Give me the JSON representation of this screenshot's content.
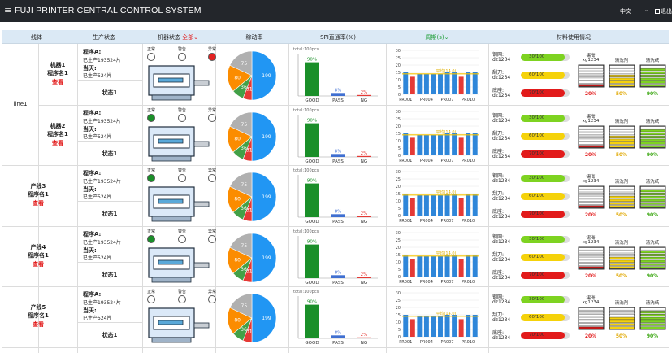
{
  "header": {
    "menu_glyph": "≡",
    "title": "FUJI PRINTER CENTRAL CONTROL SYSTEM",
    "language": "中文",
    "logout": "退出"
  },
  "columns": {
    "c0": "线体",
    "c1": "生产状态",
    "c2": "机器状态",
    "c2_filter": "全部",
    "c3": "稼动率",
    "c4": "SPI直通率(%)",
    "c5": "周期(s)",
    "c6": "材料使用情况"
  },
  "status_labels": {
    "normal": "正常",
    "warning": "警告",
    "error": "异常"
  },
  "lines": [
    {
      "name": "line1",
      "machines": [
        {
          "name1": "机器1",
          "name2": "程序名1",
          "view": "查看",
          "status": "error"
        },
        {
          "name1": "机器2",
          "name2": "程序名1",
          "view": "查看",
          "status": "normal"
        }
      ]
    },
    {
      "name": "",
      "machines": [
        {
          "name1": "产线3",
          "name2": "程序名1",
          "view": "查看",
          "status": "normal"
        }
      ]
    },
    {
      "name": "",
      "machines": [
        {
          "name1": "产线4",
          "name2": "程序名1",
          "view": "查看",
          "status": "normal"
        }
      ]
    },
    {
      "name": "",
      "machines": [
        {
          "name1": "产线5",
          "name2": "程序名1",
          "view": "查看",
          "status": "none"
        }
      ]
    }
  ],
  "production": {
    "program": "程序A:",
    "total": "已生产193524片",
    "today_label": "当天:",
    "today": "已生产524片",
    "state": "状态1"
  },
  "utilization": {
    "slices": [
      {
        "label": "199",
        "value": 50,
        "color": "#2196f3"
      },
      {
        "label": "31",
        "value": 6,
        "color": "#e53935"
      },
      {
        "label": "36",
        "value": 8,
        "color": "#43a047"
      },
      {
        "label": "80",
        "value": 18,
        "color": "#fb8c00"
      },
      {
        "label": "75",
        "value": 18,
        "color": "#b0b0b0"
      }
    ]
  },
  "spi": {
    "total_label": "total:100pcs",
    "ymax": 100,
    "bars": [
      {
        "label": "GOOD",
        "value": 90,
        "pct": "90%",
        "color": "#1a8f29"
      },
      {
        "label": "PASS",
        "value": 8,
        "pct": "8%",
        "color": "#3f6fd1"
      },
      {
        "label": "NG",
        "value": 2,
        "pct": "2%",
        "color": "#e53935"
      }
    ]
  },
  "cycle": {
    "ymax": 30,
    "yticks": [
      "30",
      "25",
      "20",
      "15",
      "10",
      "5",
      "0"
    ],
    "xlabels": [
      "PR001",
      "PR004",
      "PR007",
      "PR010"
    ],
    "avg_label": "平均(14.0)",
    "avg": 14,
    "values": [
      15,
      12,
      14,
      14,
      14,
      14,
      15,
      15,
      12,
      15,
      15
    ],
    "colors": [
      "#2e86d9",
      "#e53935",
      "#2e86d9",
      "#2e86d9",
      "#2e86d9",
      "#2e86d9",
      "#2e86d9",
      "#2e86d9",
      "#e53935",
      "#2e86d9",
      "#2e86d9"
    ]
  },
  "materials": {
    "rows": [
      {
        "name": "钢网:",
        "id": "dz1234",
        "label": "30/100",
        "fill": 0.9,
        "color": "#7ed321"
      },
      {
        "name": "刮刀:",
        "id": "dz1234",
        "label": "60/100",
        "fill": 0.9,
        "color": "#f5d20a"
      },
      {
        "name": "底座:",
        "id": "dz1234",
        "label": "70/100",
        "fill": 0.9,
        "color": "#e21b1b"
      }
    ],
    "containers": [
      {
        "name": "锡膏",
        "sub": "xg1234",
        "pct": "20%",
        "level": 0.2,
        "color": "#c01818",
        "pctColor": "#e21b1b"
      },
      {
        "name": "清洗剂",
        "sub": "",
        "pct": "50%",
        "level": 0.5,
        "color": "#f5d20a",
        "pctColor": "#e0a800"
      },
      {
        "name": "清洗纸",
        "sub": "",
        "pct": "90%",
        "level": 0.9,
        "color": "#7ed321",
        "pctColor": "#3aa610"
      }
    ]
  }
}
